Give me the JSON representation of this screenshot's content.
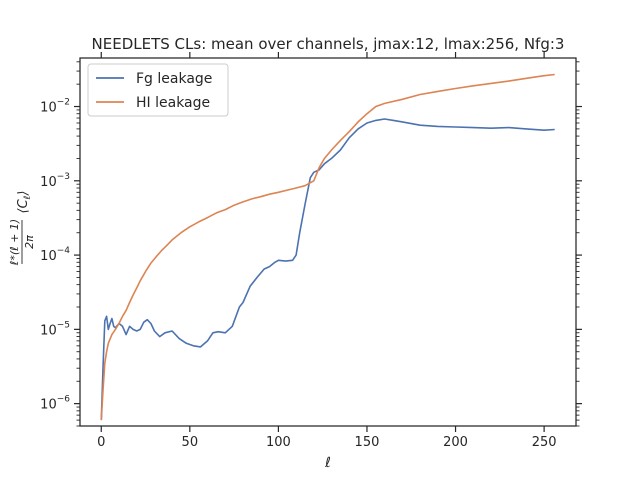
{
  "chart_data": {
    "type": "line",
    "title": "NEEDLETS CLs: mean over channels, jmax:12, lmax:256, Nfg:3",
    "xlabel": "ℓ",
    "ylabel": "ℓ*(ℓ+1)/2π ⟨Cℓ⟩",
    "yscale": "log",
    "xlim": [
      -12,
      268
    ],
    "ylim": [
      5e-07,
      0.045
    ],
    "xticks": [
      0,
      50,
      100,
      150,
      200,
      250
    ],
    "xtick_labels": [
      "0",
      "50",
      "100",
      "150",
      "200",
      "250"
    ],
    "yticks": [
      1e-06,
      1e-05,
      0.0001,
      0.001,
      0.01
    ],
    "ytick_labels": [
      {
        "base": "10",
        "exp": "−6"
      },
      {
        "base": "10",
        "exp": "−5"
      },
      {
        "base": "10",
        "exp": "−4"
      },
      {
        "base": "10",
        "exp": "−3"
      },
      {
        "base": "10",
        "exp": "−2"
      }
    ],
    "grid": false,
    "legend_position": "top-left",
    "series": [
      {
        "name": "Fg leakage",
        "color": "#4c72b0",
        "x": [
          0,
          1,
          2,
          3,
          4,
          5,
          6,
          7,
          8,
          10,
          12,
          14,
          16,
          18,
          20,
          22,
          24,
          26,
          28,
          30,
          33,
          36,
          40,
          44,
          48,
          52,
          56,
          60,
          63,
          66,
          70,
          74,
          78,
          80,
          84,
          88,
          92,
          95,
          98,
          100,
          104,
          108,
          110,
          112,
          115,
          118,
          120,
          123,
          126,
          130,
          135,
          140,
          145,
          150,
          155,
          160,
          165,
          170,
          180,
          190,
          200,
          210,
          220,
          230,
          240,
          250,
          256
        ],
        "y": [
          6e-07,
          3e-06,
          1.3e-05,
          1.5e-05,
          1e-05,
          1.2e-05,
          1.4e-05,
          1.1e-05,
          1.05e-05,
          1.2e-05,
          1.1e-05,
          8.5e-06,
          1.1e-05,
          1e-05,
          9.5e-06,
          1e-05,
          1.25e-05,
          1.35e-05,
          1.2e-05,
          9.5e-06,
          8e-06,
          9e-06,
          9.5e-06,
          7.5e-06,
          6.5e-06,
          6e-06,
          5.8e-06,
          7e-06,
          9e-06,
          9.3e-06,
          9e-06,
          1.1e-05,
          2e-05,
          2.3e-05,
          3.8e-05,
          5e-05,
          6.5e-05,
          7e-05,
          8e-05,
          8.5e-05,
          8.3e-05,
          8.5e-05,
          0.0001,
          0.0002,
          0.00048,
          0.0011,
          0.0013,
          0.0014,
          0.0017,
          0.002,
          0.0026,
          0.0038,
          0.005,
          0.006,
          0.0065,
          0.0068,
          0.0065,
          0.0062,
          0.0056,
          0.0054,
          0.0053,
          0.0052,
          0.0051,
          0.0052,
          0.005,
          0.0048,
          0.0049
        ]
      },
      {
        "name": "HI leakage",
        "color": "#dd8452",
        "x": [
          0,
          1,
          2,
          3,
          4,
          6,
          8,
          10,
          12,
          14,
          16,
          18,
          20,
          22,
          25,
          28,
          31,
          34,
          37,
          40,
          45,
          50,
          55,
          60,
          65,
          70,
          75,
          80,
          85,
          90,
          95,
          100,
          105,
          110,
          115,
          120,
          123,
          126,
          130,
          135,
          140,
          145,
          150,
          155,
          160,
          170,
          180,
          190,
          200,
          210,
          220,
          230,
          240,
          250,
          256
        ],
        "y": [
          6e-07,
          1.5e-06,
          3.5e-06,
          5e-06,
          6.5e-06,
          8.5e-06,
          1e-05,
          1.2e-05,
          1.5e-05,
          1.8e-05,
          2.3e-05,
          2.9e-05,
          3.6e-05,
          4.5e-05,
          6e-05,
          7.8e-05,
          9.5e-05,
          0.000115,
          0.000135,
          0.00016,
          0.0002,
          0.00024,
          0.00028,
          0.00032,
          0.00037,
          0.00041,
          0.00047,
          0.00052,
          0.00057,
          0.00061,
          0.00066,
          0.0007,
          0.00075,
          0.0008,
          0.00086,
          0.001,
          0.0015,
          0.002,
          0.0026,
          0.0035,
          0.0046,
          0.0062,
          0.008,
          0.01,
          0.011,
          0.0125,
          0.0145,
          0.016,
          0.0175,
          0.019,
          0.0205,
          0.022,
          0.024,
          0.026,
          0.027
        ]
      }
    ]
  }
}
